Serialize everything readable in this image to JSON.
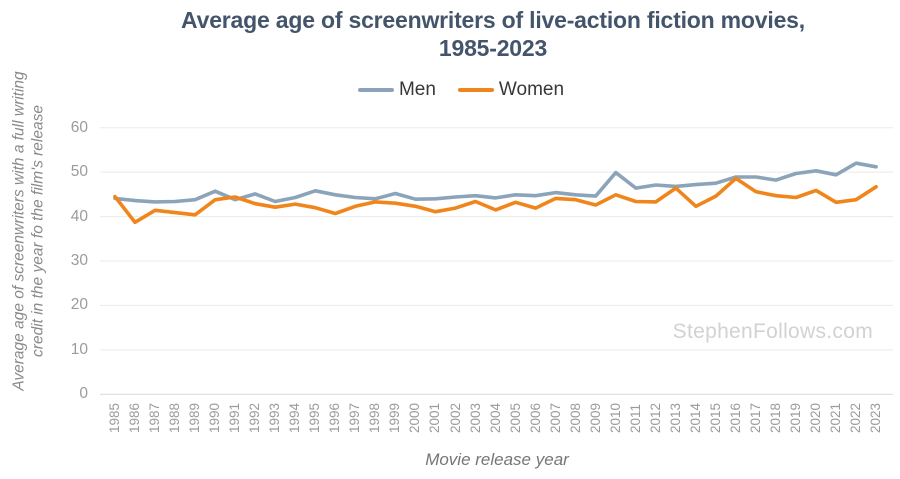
{
  "title": {
    "line1": "Average age of screenwriters of live-action fiction movies,",
    "line2": "1985-2023"
  },
  "legend": [
    {
      "label": "Men",
      "color": "#8CA4BA"
    },
    {
      "label": "Women",
      "color": "#F0861B"
    }
  ],
  "y_axis": {
    "title_line1": "Average age of screenwriters with a full writing",
    "title_line2": "credit in the year fo the film's release",
    "ticks": [
      60,
      50,
      40,
      30,
      20,
      10,
      0
    ]
  },
  "x_axis": {
    "title": "Movie release year"
  },
  "watermark": "StephenFollows.com",
  "colors": {
    "title": "#44546a",
    "men_line": "#8CA4BA",
    "women_line": "#F0861B",
    "gridline": "#eaeaea",
    "zero_line": "#d9d9d9",
    "tick_text": "#9b9b9b",
    "watermark_text": "#d2d2d2"
  },
  "chart_data": {
    "type": "line",
    "title": "Average age of screenwriters of live-action fiction movies, 1985-2023",
    "xlabel": "Movie release year",
    "ylabel": "Average age of screenwriters with a full writing credit in the year fo the film's release",
    "ylim": [
      0,
      60
    ],
    "y_step": 10,
    "grid": true,
    "legend_position": "top",
    "x": [
      1985,
      1986,
      1987,
      1988,
      1989,
      1990,
      1991,
      1992,
      1993,
      1994,
      1995,
      1996,
      1997,
      1998,
      1999,
      2000,
      2001,
      2002,
      2003,
      2004,
      2005,
      2006,
      2007,
      2008,
      2009,
      2010,
      2011,
      2012,
      2013,
      2014,
      2015,
      2016,
      2017,
      2018,
      2019,
      2020,
      2021,
      2022,
      2023
    ],
    "series": [
      {
        "name": "Men",
        "color": "#8CA4BA",
        "values": [
          44.1,
          43.6,
          43.3,
          43.4,
          43.8,
          45.7,
          43.8,
          45.1,
          43.4,
          44.3,
          45.8,
          44.9,
          44.3,
          44.0,
          45.2,
          43.9,
          44.0,
          44.4,
          44.7,
          44.2,
          44.9,
          44.7,
          45.4,
          44.9,
          44.6,
          49.9,
          46.4,
          47.1,
          46.8,
          47.2,
          47.5,
          48.9,
          48.9,
          48.2,
          49.7,
          50.3,
          49.4,
          52.0,
          51.2
        ]
      },
      {
        "name": "Women",
        "color": "#F0861B",
        "values": [
          44.5,
          38.7,
          41.4,
          40.9,
          40.4,
          43.8,
          44.4,
          42.9,
          42.1,
          42.8,
          42.0,
          40.7,
          42.3,
          43.3,
          43.0,
          42.3,
          41.1,
          41.9,
          43.4,
          41.5,
          43.2,
          41.9,
          44.1,
          43.8,
          42.6,
          44.9,
          43.4,
          43.3,
          46.4,
          42.3,
          44.6,
          48.6,
          45.6,
          44.7,
          44.3,
          45.9,
          43.2,
          43.8,
          46.7
        ]
      }
    ]
  }
}
